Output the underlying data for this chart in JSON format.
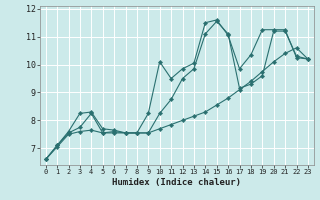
{
  "xlabel": "Humidex (Indice chaleur)",
  "background_color": "#cceaea",
  "grid_color": "#ffffff",
  "line_color": "#2a7070",
  "xlim": [
    -0.5,
    23.5
  ],
  "ylim": [
    6.4,
    12.1
  ],
  "xticks": [
    0,
    1,
    2,
    3,
    4,
    5,
    6,
    7,
    8,
    9,
    10,
    11,
    12,
    13,
    14,
    15,
    16,
    17,
    18,
    19,
    20,
    21,
    22,
    23
  ],
  "yticks": [
    7,
    8,
    9,
    10,
    11,
    12
  ],
  "line1_x": [
    0,
    1,
    2,
    3,
    4,
    5,
    6,
    7,
    8,
    9,
    10,
    11,
    12,
    13,
    14,
    15,
    16,
    17,
    18,
    19,
    20,
    21,
    22,
    23
  ],
  "line1_y": [
    6.6,
    7.1,
    7.55,
    7.75,
    8.25,
    7.55,
    7.6,
    7.55,
    7.55,
    7.55,
    8.25,
    8.75,
    9.5,
    9.85,
    11.1,
    11.55,
    11.1,
    9.15,
    9.3,
    9.6,
    11.2,
    11.2,
    10.3,
    10.2
  ],
  "line2_x": [
    0,
    1,
    2,
    3,
    4,
    5,
    6,
    7,
    8,
    9,
    10,
    11,
    12,
    13,
    14,
    15,
    16,
    17,
    18,
    19,
    20,
    21,
    22,
    23
  ],
  "line2_y": [
    6.6,
    7.1,
    7.6,
    8.25,
    8.3,
    7.7,
    7.65,
    7.55,
    7.55,
    8.25,
    10.1,
    9.5,
    9.85,
    10.05,
    11.5,
    11.6,
    11.05,
    9.85,
    10.35,
    11.25,
    11.25,
    11.25,
    10.25,
    10.2
  ],
  "line3_x": [
    0,
    1,
    2,
    3,
    4,
    5,
    6,
    7,
    8,
    9,
    10,
    11,
    12,
    13,
    14,
    15,
    16,
    17,
    18,
    19,
    20,
    21,
    22,
    23
  ],
  "line3_y": [
    6.6,
    7.05,
    7.5,
    7.6,
    7.65,
    7.55,
    7.55,
    7.55,
    7.55,
    7.55,
    7.7,
    7.85,
    8.0,
    8.15,
    8.3,
    8.55,
    8.8,
    9.1,
    9.4,
    9.75,
    10.1,
    10.4,
    10.6,
    10.2
  ]
}
